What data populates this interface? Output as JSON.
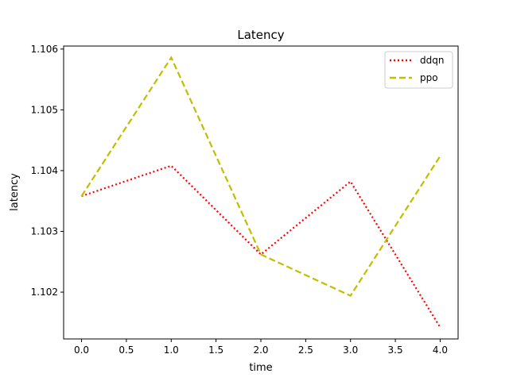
{
  "chart_data": {
    "type": "line",
    "title": "Latency",
    "xlabel": "time",
    "ylabel": "latency",
    "x": [
      0,
      1,
      2,
      3,
      4
    ],
    "xlim": [
      -0.2,
      4.2
    ],
    "ylim": [
      1.10123,
      1.10605
    ],
    "x_ticks": [
      "0.0",
      "0.5",
      "1.0",
      "1.5",
      "2.0",
      "2.5",
      "3.0",
      "3.5",
      "4.0"
    ],
    "y_ticks": [
      "1.102",
      "1.103",
      "1.104",
      "1.105",
      "1.106"
    ],
    "grid": false,
    "legend_position": "top-right",
    "series": [
      {
        "name": "ddqn",
        "color": "#ff0000",
        "style": "dotted",
        "values": [
          1.10358,
          1.10408,
          1.10262,
          1.10382,
          1.10142
        ]
      },
      {
        "name": "ppo",
        "color": "#bfbf00",
        "style": "dashed",
        "values": [
          1.10358,
          1.10586,
          1.10262,
          1.10194,
          1.10424
        ]
      }
    ]
  }
}
